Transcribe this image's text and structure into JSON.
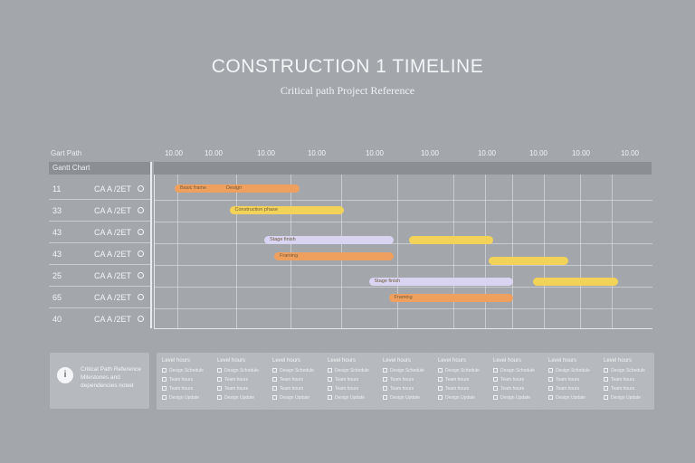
{
  "header": {
    "title": "CONSTRUCTION 1 TIMELINE",
    "subtitle": "Critical path Project Reference"
  },
  "chart_header_label": "Gart Path",
  "column_header": "Gantt Chart",
  "ticks": [
    "10.00",
    "10.00",
    "10.00",
    "10.00",
    "10.00",
    "10.00",
    "10.00",
    "10.00",
    "10.00",
    "10.00"
  ],
  "rows": [
    {
      "num": "11",
      "code": "CA A /2ET"
    },
    {
      "num": "33",
      "code": "CA A /2ET"
    },
    {
      "num": "43",
      "code": "CA A /2ET"
    },
    {
      "num": "43",
      "code": "CA A /2ET"
    },
    {
      "num": "25",
      "code": "CA A /2ET"
    },
    {
      "num": "65",
      "code": "CA A /2ET"
    },
    {
      "num": "40",
      "code": "CA A /2ET"
    }
  ],
  "colors": {
    "orange": "#f0a05e",
    "yellow": "#f2d258",
    "lavender": "#d8d4f2",
    "bg": "#a3a6ab"
  },
  "chart_data": {
    "type": "gantt",
    "bars": [
      {
        "row": 0,
        "start": 0.04,
        "end": 0.29,
        "color": "orange",
        "label": "Basic frame",
        "label2": "Design"
      },
      {
        "row": 1,
        "start": 0.15,
        "end": 0.38,
        "color": "yellow",
        "label": "Construction phase"
      },
      {
        "row": 2,
        "start": 0.22,
        "end": 0.48,
        "color": "lavender",
        "label": "Stage finish"
      },
      {
        "row": 2,
        "start": 0.51,
        "end": 0.68,
        "color": "yellow",
        "label": ""
      },
      {
        "row": 3,
        "start": 0.24,
        "end": 0.48,
        "color": "orange",
        "label": "Framing"
      },
      {
        "row": 3,
        "start": 0.67,
        "end": 0.83,
        "color": "yellow",
        "label": ""
      },
      {
        "row": 4,
        "start": 0.43,
        "end": 0.72,
        "color": "lavender",
        "label": "Stage finish"
      },
      {
        "row": 4,
        "start": 0.76,
        "end": 0.93,
        "color": "yellow",
        "label": ""
      },
      {
        "row": 5,
        "start": 0.47,
        "end": 0.72,
        "color": "orange",
        "label": "Framing"
      }
    ]
  },
  "legend": {
    "icon": "i",
    "text": "Critical Path Reference Milestones and dependencies noted"
  },
  "cards": [
    {
      "title": "Level hours",
      "items": [
        "Design Schedule",
        "Team hours",
        "Team hours",
        "Design Update"
      ]
    },
    {
      "title": "Level hours",
      "items": [
        "Design Schedule",
        "Team hours",
        "Team hours",
        "Design Update"
      ]
    },
    {
      "title": "Level hours",
      "items": [
        "Design Schedule",
        "Team hours",
        "Team hours",
        "Design Update"
      ]
    },
    {
      "title": "Level hours",
      "items": [
        "Design Schedule",
        "Team hours",
        "Team hours",
        "Design Update"
      ]
    },
    {
      "title": "Level hours",
      "items": [
        "Design Schedule",
        "Team hours",
        "Team hours",
        "Design Update"
      ]
    },
    {
      "title": "Level hours",
      "items": [
        "Design Schedule",
        "Team hours",
        "Team hours",
        "Design Update"
      ]
    },
    {
      "title": "Level hours",
      "items": [
        "Design Schedule",
        "Team hours",
        "Team hours",
        "Design Update"
      ]
    },
    {
      "title": "Level hours",
      "items": [
        "Design Schedule",
        "Team hours",
        "Team hours",
        "Design Update"
      ]
    },
    {
      "title": "Level hours",
      "items": [
        "Design Schedule",
        "Team hours",
        "Team hours",
        "Design Update"
      ]
    }
  ]
}
